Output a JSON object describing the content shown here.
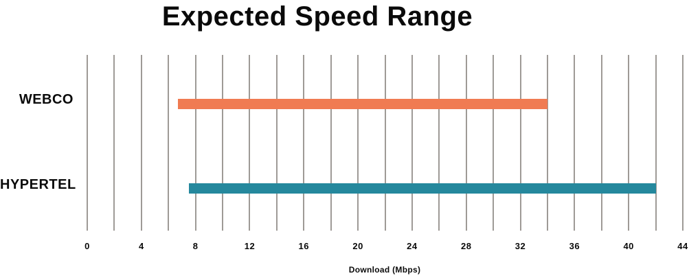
{
  "page": {
    "background": "#ffffff",
    "text_color": "#0a0a0a"
  },
  "chart_data": {
    "type": "bar",
    "subtype": "horizontal-range",
    "title": "Expected Speed Range",
    "xlabel": "Download (Mbps)",
    "ylabel": "",
    "categories": [
      "WEBCO",
      "HYPERTEL"
    ],
    "series": [
      {
        "name": "WEBCO",
        "range": [
          6.7,
          34
        ],
        "color": "#F07B52"
      },
      {
        "name": "HYPERTEL",
        "range": [
          7.5,
          42
        ],
        "color": "#25889D"
      }
    ],
    "xlim": [
      0,
      44
    ],
    "xticks": [
      0,
      4,
      8,
      12,
      16,
      20,
      24,
      28,
      32,
      36,
      40,
      44
    ],
    "grid": {
      "show": true,
      "step": 2,
      "color": "#9E9A96"
    },
    "legend": "none"
  }
}
